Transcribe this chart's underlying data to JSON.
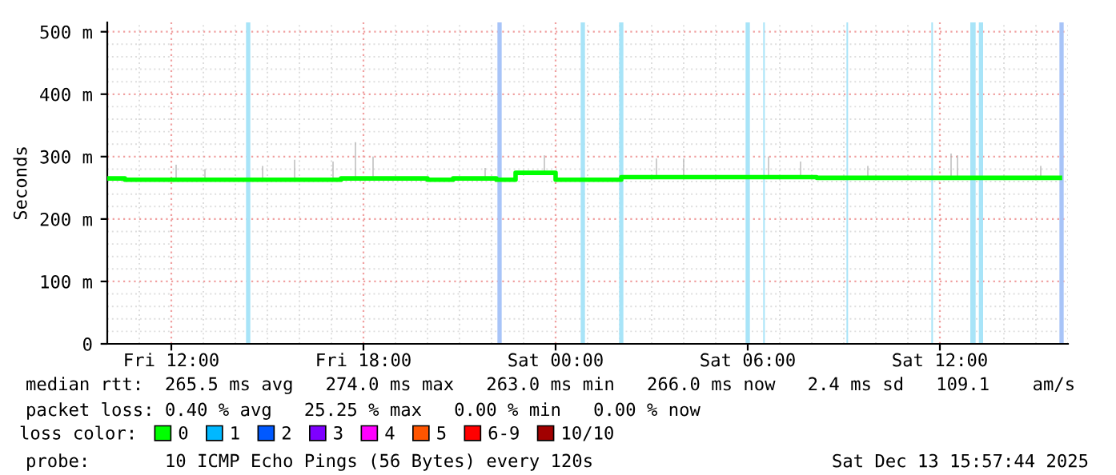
{
  "chart_data": {
    "type": "step",
    "ylabel": "Seconds",
    "xlim": [
      "2025-12-12T10:00",
      "2025-12-13T16:00"
    ],
    "xticks": [
      {
        "value": "2025-12-12T12:00",
        "label": "Fri 12:00"
      },
      {
        "value": "2025-12-12T18:00",
        "label": "Fri 18:00"
      },
      {
        "value": "2025-12-13T00:00",
        "label": "Sat 00:00"
      },
      {
        "value": "2025-12-13T06:00",
        "label": "Sat 06:00"
      },
      {
        "value": "2025-12-13T12:00",
        "label": "Sat 12:00"
      }
    ],
    "ylim": [
      0,
      515
    ],
    "yticks": [
      0,
      {
        "value": 100,
        "label": "100 m"
      },
      {
        "value": 200,
        "label": "200 m"
      },
      {
        "value": 300,
        "label": "300 m"
      },
      {
        "value": 400,
        "label": "400 m"
      },
      {
        "value": 500,
        "label": "500 m"
      }
    ],
    "grid": true,
    "legend": "bottom",
    "legend_title": "loss color:",
    "series": [
      {
        "type": "bar",
        "color": "#b4b4b4",
        "x": [
          "2025-12-12T12:09",
          "2025-12-12T13:03",
          "2025-12-12T14:51",
          "2025-12-12T15:51",
          "2025-12-12T17:03",
          "2025-12-12T17:45",
          "2025-12-12T18:18",
          "2025-12-12T21:48",
          "2025-12-12T23:39",
          "2025-12-13T03:09",
          "2025-12-13T04:00",
          "2025-12-13T06:39",
          "2025-12-13T07:39",
          "2025-12-13T09:45",
          "2025-12-13T12:21",
          "2025-12-13T12:33",
          "2025-12-13T15:09"
        ],
        "base": [
          263,
          263,
          263,
          263,
          263,
          263,
          265,
          265,
          274,
          267,
          267,
          267,
          267,
          266,
          266,
          266,
          266
        ],
        "values": [
          24,
          17,
          22,
          32,
          29,
          60,
          35,
          17,
          28,
          30,
          30,
          33,
          25,
          19,
          39,
          36,
          19
        ]
      },
      {
        "name": "0",
        "color": "#00ff00",
        "x": [
          "2025-12-12T10:00",
          "2025-12-12T10:33",
          "2025-12-12T17:18",
          "2025-12-12T19:00",
          "2025-12-12T20:00",
          "2025-12-12T20:48",
          "2025-12-12T22:09",
          "2025-12-12T22:45",
          "2025-12-13T00:00",
          "2025-12-13T02:03",
          "2025-12-13T08:09",
          "2025-12-13T15:45"
        ],
        "values": [
          265,
          263,
          265,
          265,
          263,
          265,
          263,
          274,
          263,
          267,
          266,
          266
        ]
      },
      {
        "name": "1",
        "color": "#00b8ff"
      },
      {
        "name": "2",
        "color": "#0059ff"
      },
      {
        "name": "3",
        "color": "#7e00ff"
      },
      {
        "name": "4",
        "color": "#ff00ff"
      },
      {
        "name": "5",
        "color": "#ff5500"
      },
      {
        "name": "6-9",
        "color": "#ff0000"
      },
      {
        "name": "10/10",
        "color": "#a10000"
      }
    ],
    "bands": [
      {
        "axis": "x",
        "from": "2025-12-12T14:20",
        "to": "2025-12-12T14:28",
        "color": "#a8e4f8"
      },
      {
        "axis": "x",
        "from": "2025-12-12T22:11",
        "to": "2025-12-12T22:19",
        "color": "#a8c4f8"
      },
      {
        "axis": "x",
        "from": "2025-12-13T00:47",
        "to": "2025-12-13T00:55",
        "color": "#a8e4f8"
      },
      {
        "axis": "x",
        "from": "2025-12-13T01:59",
        "to": "2025-12-13T02:07",
        "color": "#a8e4f8"
      },
      {
        "axis": "x",
        "from": "2025-12-13T05:56",
        "to": "2025-12-13T06:04",
        "color": "#a8e4f8"
      },
      {
        "axis": "x",
        "from": "2025-12-13T06:29",
        "to": "2025-12-13T06:32",
        "color": "#a8e4f8"
      },
      {
        "axis": "x",
        "from": "2025-12-13T09:05",
        "to": "2025-12-13T09:08",
        "color": "#a8e4f8"
      },
      {
        "axis": "x",
        "from": "2025-12-13T11:44",
        "to": "2025-12-13T11:47",
        "color": "#a8e4f8"
      },
      {
        "axis": "x",
        "from": "2025-12-13T12:57",
        "to": "2025-12-13T13:07",
        "color": "#a8e4f8"
      },
      {
        "axis": "x",
        "from": "2025-12-13T13:13",
        "to": "2025-12-13T13:21",
        "color": "#a8e4f8"
      },
      {
        "axis": "x",
        "from": "2025-12-13T15:44",
        "to": "2025-12-13T15:52",
        "color": "#a8c4f8"
      }
    ],
    "annotations": [
      "median rtt:  265.5 ms avg   274.0 ms max   263.0 ms min   266.0 ms now   2.4 ms sd   109.1    am/s",
      "packet loss: 0.40 % avg   25.25 % max   0.00 % min   0.00 % now",
      "probe:       10 ICMP Echo Pings (56 Bytes) every 120s",
      "Sat Dec 13 15:57:44 2025"
    ]
  }
}
